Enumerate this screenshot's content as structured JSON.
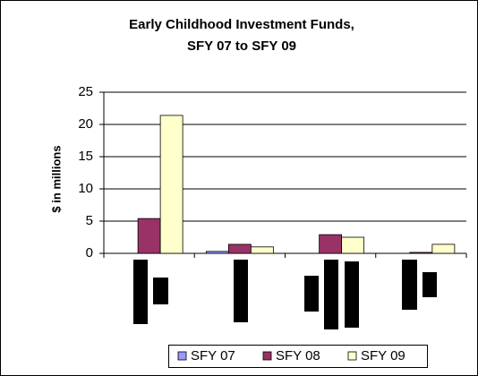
{
  "chart_data": {
    "type": "bar",
    "title": [
      "Early Childhood Investment Funds,",
      "SFY 07 to SFY 09"
    ],
    "y_label": "$ in millions",
    "categories": [
      null,
      null,
      null,
      null
    ],
    "series": [
      {
        "name": "SFY 07",
        "color": "#9999ff",
        "values": [
          0,
          0.3,
          0,
          0
        ]
      },
      {
        "name": "SFY 08",
        "color": "#993366",
        "values": [
          5.4,
          1.4,
          2.9,
          0.15
        ]
      },
      {
        "name": "SFY 09",
        "color": "#ffffcc",
        "values": [
          21.4,
          1.0,
          2.5,
          1.4
        ]
      }
    ],
    "ylim": [
      0,
      25
    ],
    "yticks": [
      0,
      5,
      10,
      15,
      20,
      25
    ],
    "grid": true,
    "legend": "bottom"
  }
}
